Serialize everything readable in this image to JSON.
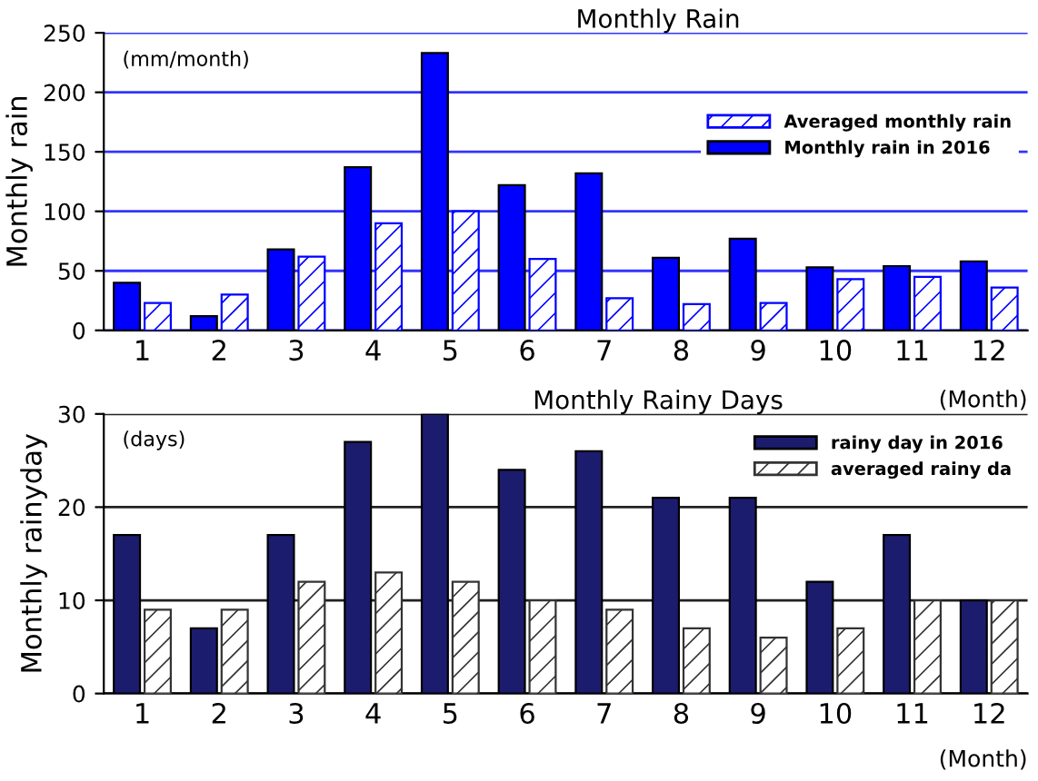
{
  "chart_data": [
    {
      "type": "bar",
      "title": "Monthly Rain",
      "ylabel": "Monthly rain",
      "xlabel": "(Month)",
      "annotations": [
        "(mm/month)"
      ],
      "categories": [
        "1",
        "2",
        "3",
        "4",
        "5",
        "6",
        "7",
        "8",
        "9",
        "10",
        "11",
        "12"
      ],
      "series": [
        {
          "name": "Monthly rain in 2016",
          "color": "#0000ff",
          "values": [
            40,
            12,
            68,
            137,
            233,
            122,
            132,
            61,
            77,
            53,
            54,
            58
          ]
        },
        {
          "name": "Averaged monthly rain",
          "color": "#0000ff",
          "values": [
            23,
            30,
            62,
            90,
            100,
            60,
            27,
            22,
            23,
            43,
            45,
            36
          ]
        }
      ],
      "ylim": [
        0,
        250
      ],
      "yticks": [
        0,
        50,
        100,
        150,
        200,
        250
      ],
      "grid": "y",
      "legend": "top right"
    },
    {
      "type": "bar",
      "title": "Monthly Rainy Days",
      "ylabel": "Monthly rainyday",
      "xlabel": "(Month)",
      "annotations": [
        "(days)"
      ],
      "categories": [
        "1",
        "2",
        "3",
        "4",
        "5",
        "6",
        "7",
        "8",
        "9",
        "10",
        "11",
        "12"
      ],
      "series": [
        {
          "name": "rainy day in 2016",
          "color": "#1c1c6e",
          "values": [
            17,
            7,
            17,
            27,
            30,
            24,
            26,
            21,
            21,
            12,
            17,
            10
          ]
        },
        {
          "name": "averaged rainy da",
          "color": "#333333",
          "values": [
            9,
            9,
            12,
            13,
            12,
            10,
            9,
            7,
            6,
            7,
            10,
            10
          ]
        }
      ],
      "ylim": [
        0,
        30
      ],
      "yticks": [
        0,
        10,
        20,
        30
      ],
      "grid": "y",
      "legend": "top right"
    }
  ]
}
